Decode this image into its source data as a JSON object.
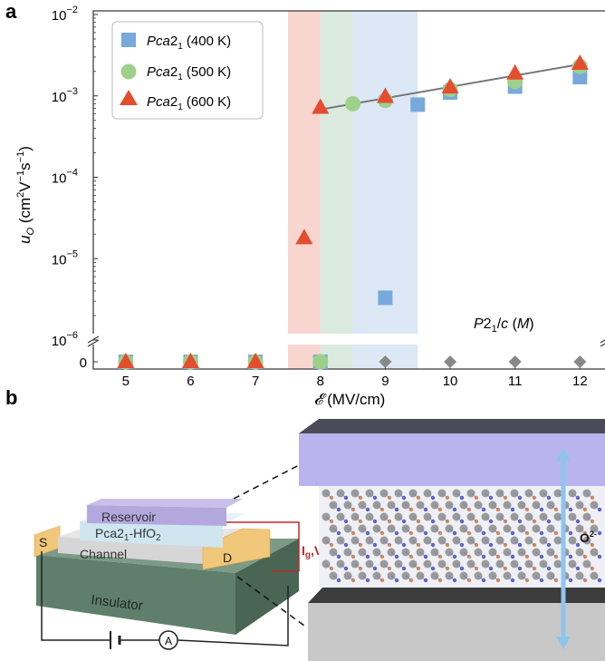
{
  "panels": {
    "a": "a",
    "b": "b"
  },
  "chart_data": {
    "type": "scatter",
    "x_label": "𝓔 (MV/cm)",
    "y_label": "uO (cm2V−1s−1)",
    "y_scale": "log",
    "x_range": [
      4.5,
      12.4
    ],
    "y_range_log": [
      1e-06,
      0.01
    ],
    "x_ticks": [
      "5",
      "6",
      "7",
      "8",
      "9",
      "10",
      "11",
      "12"
    ],
    "y_ticks": [
      {
        "base": "10",
        "exp": "−2",
        "value": 0.01
      },
      {
        "base": "10",
        "exp": "−3",
        "value": 0.001
      },
      {
        "base": "10",
        "exp": "−4",
        "value": 0.0001
      },
      {
        "base": "10",
        "exp": "−5",
        "value": 1e-05
      },
      {
        "base": "10",
        "exp": "−6",
        "value": 1e-06
      }
    ],
    "zero_tick": "0",
    "shaded_bands": [
      {
        "x0": 7.5,
        "x1": 8.0,
        "color": "#f7c7c0"
      },
      {
        "x0": 8.0,
        "x1": 8.5,
        "color": "#cfe3d4"
      },
      {
        "x0": 8.5,
        "x1": 9.5,
        "color": "#d2e0f3"
      }
    ],
    "series": [
      {
        "name": "Pca21 (400 K)",
        "marker": "square",
        "color": "#77a9dc",
        "points": [
          [
            5,
            0
          ],
          [
            6,
            0
          ],
          [
            7,
            0
          ],
          [
            8,
            0
          ],
          [
            9,
            3.3e-06
          ],
          [
            9.5,
            0.00078
          ],
          [
            10,
            0.0011
          ],
          [
            11,
            0.0013
          ],
          [
            12,
            0.0017
          ]
        ]
      },
      {
        "name": "Pca21 (500 K)",
        "marker": "circle",
        "color": "#9ed08a",
        "points": [
          [
            5,
            0
          ],
          [
            6,
            0
          ],
          [
            7,
            0
          ],
          [
            8,
            0
          ],
          [
            8.5,
            0.0008
          ],
          [
            9,
            0.00088
          ],
          [
            10,
            0.0012
          ],
          [
            11,
            0.0015
          ],
          [
            12,
            0.0023
          ]
        ]
      },
      {
        "name": "Pca21 (600 K)",
        "marker": "triangle",
        "color": "#e44d2e",
        "points": [
          [
            5,
            0
          ],
          [
            6,
            0
          ],
          [
            7,
            0
          ],
          [
            7.75,
            1.8e-05
          ],
          [
            8,
            0.00072
          ],
          [
            9,
            0.00098
          ],
          [
            10,
            0.00128
          ],
          [
            11,
            0.0019
          ],
          [
            12,
            0.0025
          ]
        ]
      },
      {
        "name": "P21/c (M)",
        "marker": "diamond",
        "color": "#888888",
        "points": [
          [
            9,
            0
          ],
          [
            10,
            0
          ],
          [
            11,
            0
          ],
          [
            12,
            0
          ]
        ]
      }
    ],
    "fit_line": {
      "color": "#777777",
      "points": [
        [
          8,
          0.00068
        ],
        [
          12,
          0.00245
        ]
      ]
    },
    "legend": {
      "placement": "top-left",
      "entries": [
        {
          "italic": "Pca",
          "sub": "2",
          "after": "1",
          "temp": " (400 K)"
        },
        {
          "italic": "Pca",
          "sub": "2",
          "after": "1",
          "temp": " (500 K)"
        },
        {
          "italic": "Pca",
          "sub": "2",
          "after": "1",
          "temp": " (600 K)"
        }
      ]
    },
    "annotation": "P21/c (M)"
  },
  "diagram": {
    "layers": {
      "reservoir": "Reservoir",
      "hfo2_prefix": "Pca2",
      "hfo2_sub1": "1",
      "hfo2_mid": "-HfO",
      "hfo2_sub2": "2",
      "channel": "Channel",
      "source": "S",
      "drain": "D",
      "insulator": "Insulator"
    },
    "gate_label": {
      "i": "I",
      "i_sub": "g",
      "v": ",V",
      "v_sub": "g"
    },
    "ammeter": "A",
    "ion_label": {
      "base": "O",
      "sup": "2-"
    },
    "colors": {
      "reservoir": "#b8aee0",
      "hfo2": "#d6eaf3",
      "channel": "#dcdcdc",
      "electrode": "#f1c77a",
      "insulator": "#5f7f6c",
      "accent_red": "#c0282a",
      "top_plate": "#b9b4ee",
      "bottom_plate": "#c8c8c8",
      "arrow": "#8ec5ec"
    }
  }
}
